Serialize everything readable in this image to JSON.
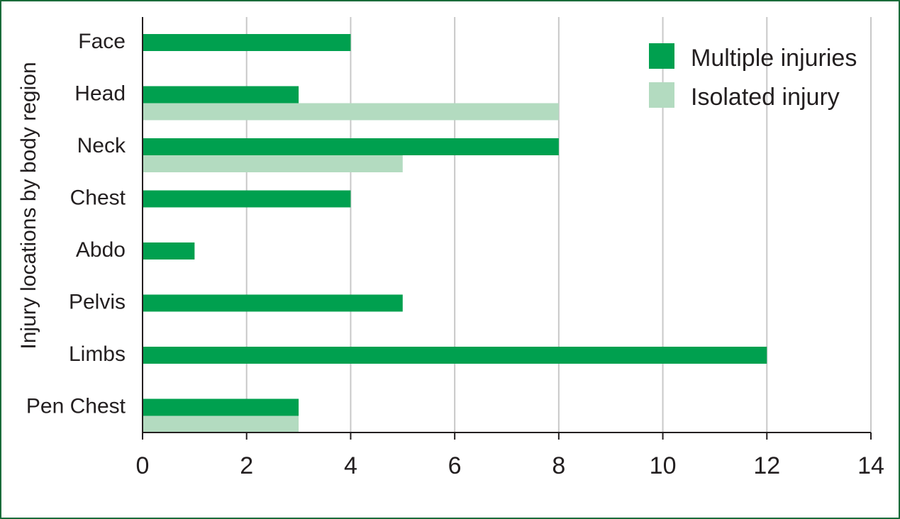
{
  "chart_data": {
    "type": "bar",
    "orientation": "horizontal",
    "title": "",
    "xlabel": "",
    "ylabel": "Injury locations by body region",
    "categories": [
      "Face",
      "Head",
      "Neck",
      "Chest",
      "Abdo",
      "Pelvis",
      "Limbs",
      "Pen Chest"
    ],
    "series": [
      {
        "name": "Multiple injuries",
        "color": "#00a04f",
        "values": [
          4,
          3,
          8,
          4,
          1,
          5,
          12,
          3
        ]
      },
      {
        "name": "Isolated injury",
        "color": "#b3dbc0",
        "values": [
          0,
          8,
          5,
          0,
          0,
          0,
          0,
          3
        ]
      }
    ],
    "xlim": [
      0,
      14
    ],
    "xticks": [
      "0",
      "2",
      "4",
      "6",
      "8",
      "10",
      "12",
      "14"
    ],
    "grid": "vertical",
    "legend_position": "top-right"
  },
  "colors": {
    "frame": "#1a6b3a",
    "gridline": "#c8c8c8",
    "axis": "#231f20"
  }
}
